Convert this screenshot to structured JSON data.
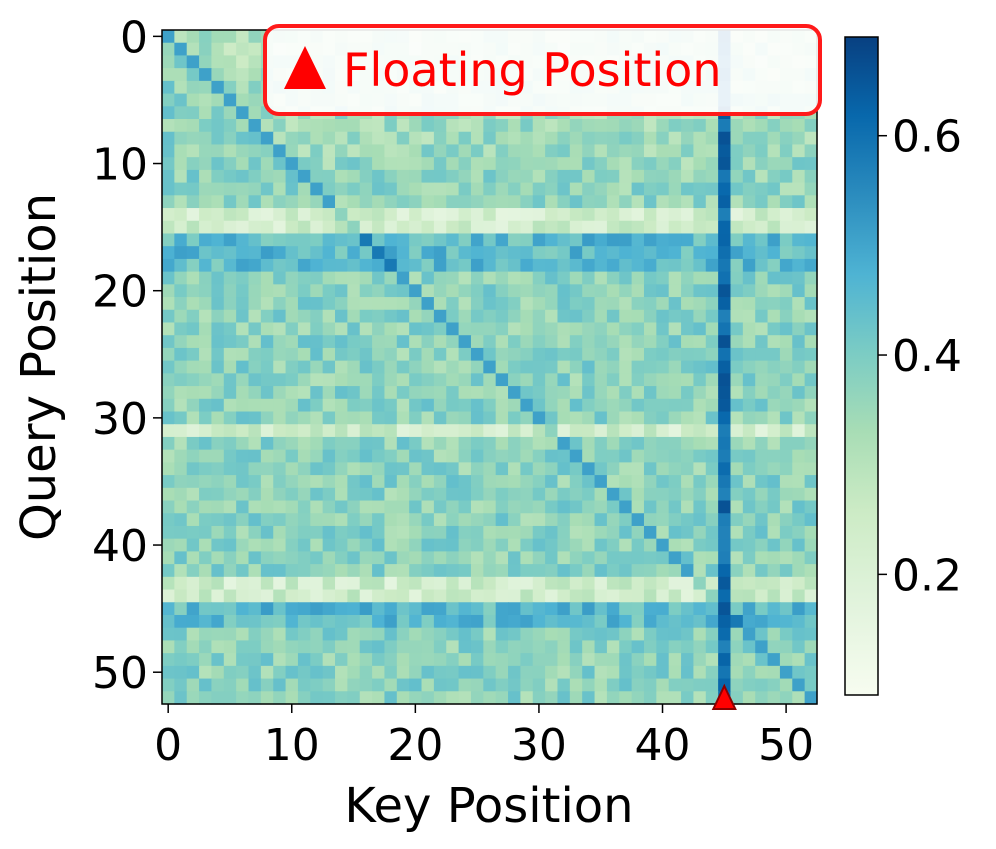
{
  "chart_data": {
    "type": "heatmap",
    "xlabel": "Key Position",
    "ylabel": "Query Position",
    "size": 53,
    "xlim": [
      0,
      52
    ],
    "ylim": [
      0,
      52
    ],
    "x_ticks": [
      "0",
      "10",
      "20",
      "30",
      "40",
      "50"
    ],
    "y_ticks": [
      "0",
      "10",
      "20",
      "30",
      "40",
      "50"
    ],
    "colormap": "GnBu",
    "colorbar": {
      "range": [
        0.09,
        0.69
      ],
      "ticks": [
        "0.2",
        "0.4",
        "0.6"
      ]
    },
    "highlight": {
      "column": 45,
      "row_band_low": [
        14,
        15,
        31,
        43,
        44
      ],
      "row_band_high": [
        16,
        17,
        18,
        45,
        46
      ]
    },
    "marker": {
      "label": "Floating Position",
      "key_position": 45,
      "symbol": "triangle",
      "color": "#ff0000"
    },
    "legend_position": "top-right"
  }
}
